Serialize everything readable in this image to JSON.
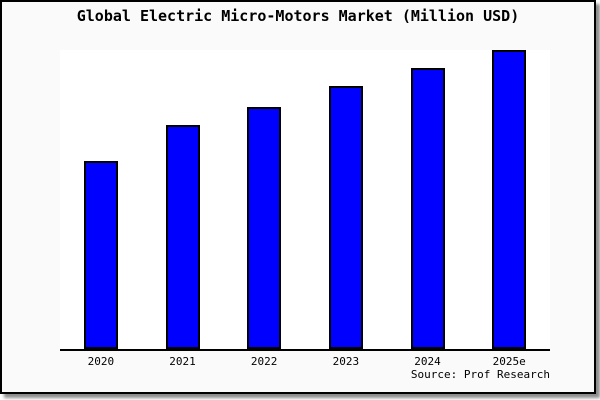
{
  "title": "Global Electric Micro-Motors Market (Million USD)",
  "source_label": "Source: Prof Research",
  "colors": {
    "bar_fill": "#0000ff",
    "bar_border": "#000000",
    "plot_background": "#ffffff",
    "canvas_background": "#fafafa",
    "frame_border": "#000000",
    "shadow": "#8c8c8c",
    "text": "#000000"
  },
  "chart_data": {
    "type": "bar",
    "title": "Global Electric Micro-Motors Market (Million USD)",
    "categories": [
      "2020",
      "2021",
      "2022",
      "2023",
      "2024",
      "2025e"
    ],
    "values": [
      63,
      75,
      81,
      88,
      94,
      100
    ],
    "value_scale": "relative, no y-axis labels shown in image; normalized to tallest bar = 100",
    "units": "Million USD",
    "xlabel": "",
    "ylabel": "",
    "ylim": [
      0,
      100
    ],
    "gridlines": false,
    "legend": false
  }
}
